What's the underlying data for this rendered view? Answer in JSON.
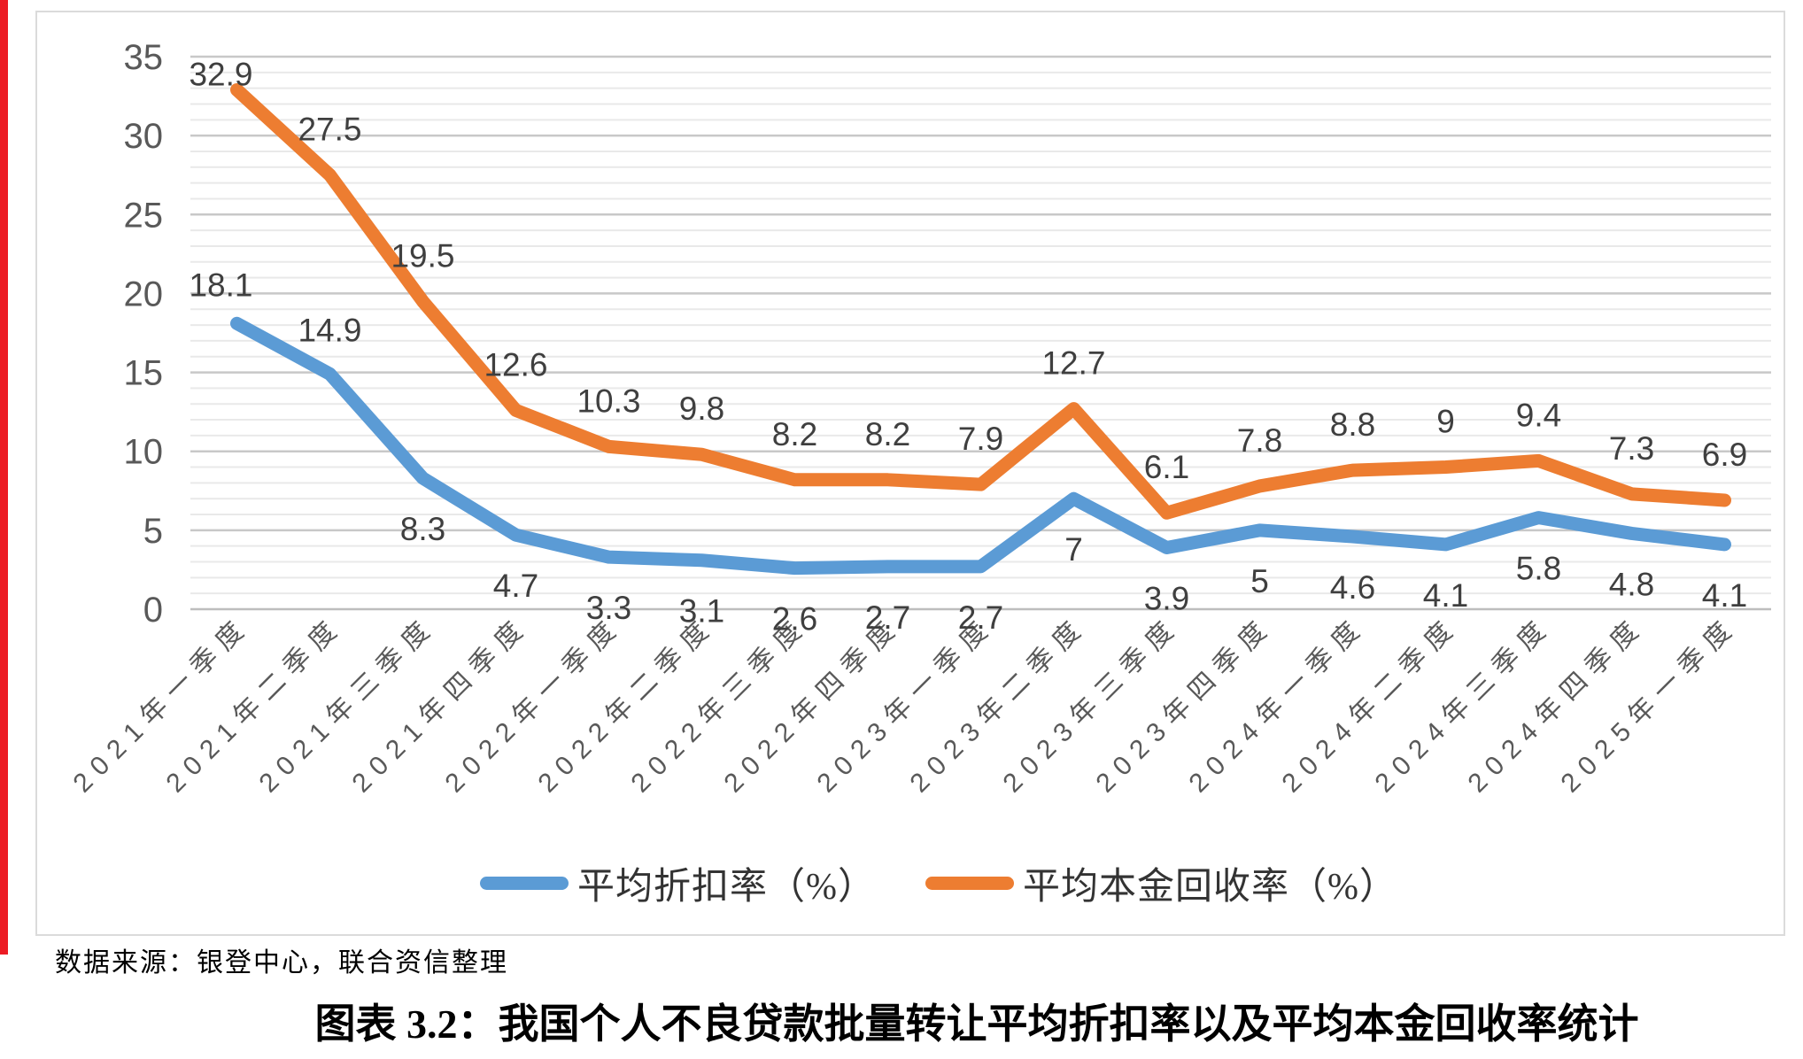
{
  "page": {
    "left_bar_color": "#EC1C24",
    "source_note": "数据来源：银登中心，联合资信整理",
    "caption": "图表 3.2：我国个人不良贷款批量转让平均折扣率以及平均本金回收率统计"
  },
  "chart_data": {
    "type": "line",
    "title": "",
    "xlabel": "",
    "ylabel": "",
    "categories": [
      "2021年一季度",
      "2021年二季度",
      "2021年三季度",
      "2021年四季度",
      "2022年一季度",
      "2022年二季度",
      "2022年三季度",
      "2022年四季度",
      "2023年一季度",
      "2023年二季度",
      "2023年三季度",
      "2023年四季度",
      "2024年一季度",
      "2024年二季度",
      "2024年三季度",
      "2024年四季度",
      "2025年一季度"
    ],
    "series": [
      {
        "name": "平均折扣率（%）",
        "color": "#5B9BD5",
        "values": [
          18.1,
          14.9,
          8.3,
          4.7,
          3.3,
          3.1,
          2.6,
          2.7,
          2.7,
          7,
          3.9,
          5,
          4.6,
          4.1,
          5.8,
          4.8,
          4.1
        ]
      },
      {
        "name": "平均本金回收率（%）",
        "color": "#ED7D31",
        "values": [
          32.9,
          27.5,
          19.5,
          12.6,
          10.3,
          9.8,
          8.2,
          8.2,
          7.9,
          12.7,
          6.1,
          7.8,
          8.8,
          9,
          9.4,
          7.3,
          6.9
        ]
      }
    ],
    "ylim": [
      0,
      35
    ],
    "yticks": [
      0,
      5,
      10,
      15,
      20,
      25,
      30,
      35
    ],
    "minor_gridline_step": 1,
    "grid": true,
    "legend_position": "bottom",
    "colors": {
      "axis_text": "#595959",
      "data_label": "#3F3F3F",
      "major_grid": "#C8C8C8",
      "minor_grid": "#E9E9E9",
      "zero_line": "#BDBDBD"
    }
  }
}
